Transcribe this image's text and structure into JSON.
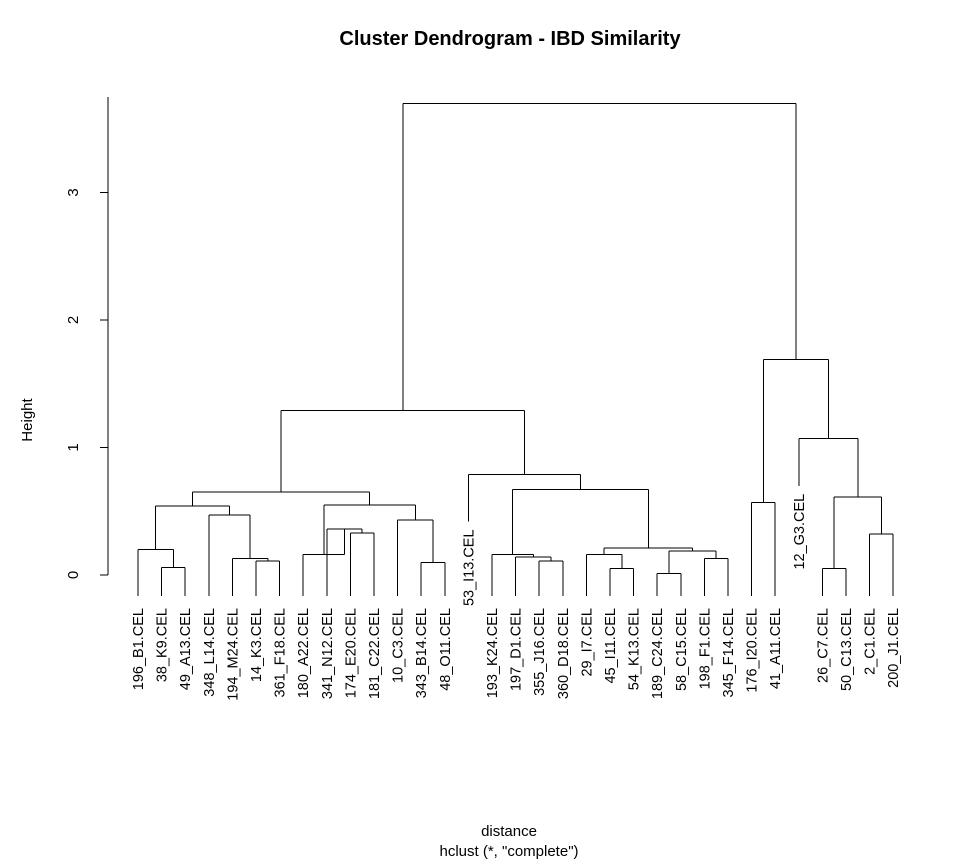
{
  "chart_data": {
    "type": "dendrogram",
    "title": "Cluster Dendrogram - IBD Similarity",
    "xlabel": "distance",
    "sub": "hclust (*, \"complete\")",
    "ylabel": "Height",
    "ylim": [
      0,
      3.75
    ],
    "yticks": [
      0,
      1,
      2,
      3
    ],
    "labels": [
      "196_B1.CEL",
      "38_K9.CEL",
      "49_A13.CEL",
      "348_L14.CEL",
      "194_M24.CEL",
      "14_K3.CEL",
      "361_F18.CEL",
      "180_A22.CEL",
      "341_N12.CEL",
      "174_E20.CEL",
      "181_C22.CEL",
      "10_C3.CEL",
      "343_B14.CEL",
      "48_O11.CEL",
      "53_I13.CEL",
      "193_K24.CEL",
      "197_D1.CEL",
      "355_J16.CEL",
      "360_D18.CEL",
      "29_I7.CEL",
      "45_I11.CEL",
      "54_K13.CEL",
      "189_C24.CEL",
      "58_C15.CEL",
      "198_F1.CEL",
      "345_F14.CEL",
      "176_I20.CEL",
      "41_A11.CEL",
      "12_G3.CEL",
      "26_C7.CEL",
      "50_C13.CEL",
      "2_C1.CEL",
      "200_J1.CEL"
    ],
    "merges": [
      {
        "a": 1,
        "b": 2,
        "h": 0.06
      },
      {
        "a": 0,
        "b": "m0",
        "h": 0.2
      },
      {
        "a": 5,
        "b": 6,
        "h": 0.11
      },
      {
        "a": 4,
        "b": "m2",
        "h": 0.13
      },
      {
        "a": 3,
        "b": "m3",
        "h": 0.47
      },
      {
        "a": "m1",
        "b": "m4",
        "h": 0.54
      },
      {
        "a": 9,
        "b": 10,
        "h": 0.33
      },
      {
        "a": 8,
        "b": "m6",
        "h": 0.36
      },
      {
        "a": 7,
        "b": "m7",
        "h": 0.16
      },
      {
        "a": 12,
        "b": 13,
        "h": 0.1
      },
      {
        "a": 11,
        "b": "m9",
        "h": 0.43
      },
      {
        "a": "m8",
        "b": "m10",
        "h": 0.55
      },
      {
        "a": "m5",
        "b": "m11",
        "h": 0.65
      },
      {
        "a": 17,
        "b": 18,
        "h": 0.11
      },
      {
        "a": 16,
        "b": "m13",
        "h": 0.14
      },
      {
        "a": 15,
        "b": "m14",
        "h": 0.16
      },
      {
        "a": 20,
        "b": 21,
        "h": 0.05
      },
      {
        "a": 19,
        "b": "m16",
        "h": 0.16
      },
      {
        "a": 22,
        "b": 23,
        "h": 0.01
      },
      {
        "a": 24,
        "b": 25,
        "h": 0.13
      },
      {
        "a": "m18",
        "b": "m19",
        "h": 0.19
      },
      {
        "a": "m17",
        "b": "m20",
        "h": 0.21
      },
      {
        "a": "m15",
        "b": "m21",
        "h": 0.67
      },
      {
        "a": 14,
        "b": "m22",
        "h": 0.79
      },
      {
        "a": "m12",
        "b": "m23",
        "h": 1.29
      },
      {
        "a": 26,
        "b": 27,
        "h": 0.57
      },
      {
        "a": 29,
        "b": 30,
        "h": 0.05
      },
      {
        "a": 31,
        "b": 32,
        "h": 0.32
      },
      {
        "a": "m26",
        "b": "m27",
        "h": 0.61
      },
      {
        "a": 28,
        "b": "m28",
        "h": 1.07
      },
      {
        "a": "m25",
        "b": "m29",
        "h": 1.69
      },
      {
        "a": "m24",
        "b": "m30",
        "h": 3.7
      }
    ],
    "leaf_ends": [
      0.0,
      0.0,
      0.0,
      0.0,
      0.0,
      0.0,
      0.0,
      0.0,
      0.0,
      0.0,
      0.0,
      0.0,
      0.0,
      0.0,
      0.42,
      0.0,
      0.0,
      0.0,
      0.0,
      0.0,
      0.0,
      0.0,
      0.0,
      0.0,
      0.0,
      0.0,
      0.0,
      0.0,
      0.7,
      0.0,
      0.0,
      0.0,
      0.0
    ]
  }
}
